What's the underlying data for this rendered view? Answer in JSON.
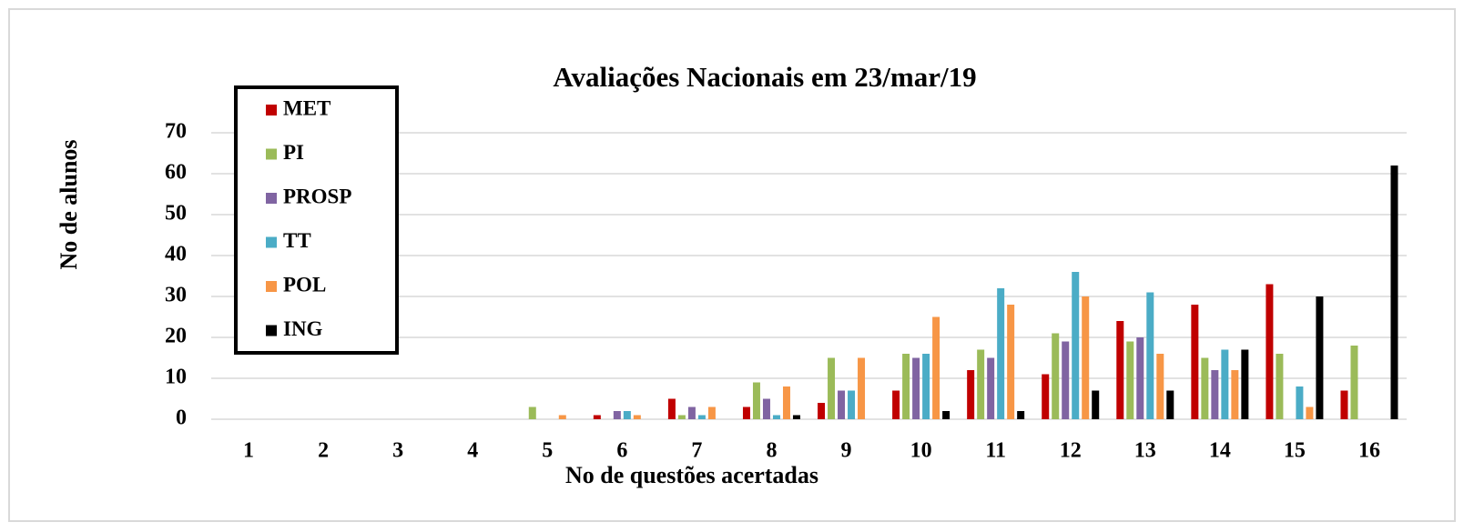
{
  "chart_data": {
    "type": "bar",
    "title": "Avaliações Nacionais em 23/mar/19",
    "x_label": "No de questões acertadas",
    "y_label": "No de alunos",
    "categories": [
      "1",
      "2",
      "3",
      "4",
      "5",
      "6",
      "7",
      "8",
      "9",
      "10",
      "11",
      "12",
      "13",
      "14",
      "15",
      "16"
    ],
    "series": [
      {
        "name": "MET",
        "color": "#c00000",
        "values": [
          0,
          0,
          0,
          0,
          0,
          1,
          5,
          3,
          4,
          7,
          12,
          11,
          24,
          28,
          33,
          7
        ]
      },
      {
        "name": "PI",
        "color": "#9bbb59",
        "values": [
          0,
          0,
          0,
          0,
          3,
          0,
          1,
          9,
          15,
          16,
          17,
          21,
          19,
          15,
          16,
          18
        ]
      },
      {
        "name": "PROSP",
        "color": "#8064a2",
        "values": [
          0,
          0,
          0,
          0,
          0,
          2,
          3,
          5,
          7,
          15,
          15,
          19,
          20,
          12,
          0,
          0
        ]
      },
      {
        "name": "TT",
        "color": "#4bacc6",
        "values": [
          0,
          0,
          0,
          0,
          0,
          2,
          1,
          1,
          7,
          16,
          32,
          36,
          31,
          17,
          8,
          0
        ]
      },
      {
        "name": "POL",
        "color": "#f79646",
        "values": [
          0,
          0,
          0,
          0,
          1,
          1,
          3,
          8,
          15,
          25,
          28,
          30,
          16,
          12,
          3,
          0
        ]
      },
      {
        "name": "ING",
        "color": "#000000",
        "values": [
          0,
          0,
          0,
          0,
          0,
          0,
          0,
          1,
          0,
          2,
          2,
          7,
          7,
          17,
          30,
          62
        ]
      }
    ],
    "ylim": [
      0,
      70
    ],
    "yticks": [
      0,
      10,
      20,
      30,
      40,
      50,
      60,
      70
    ],
    "grid": true,
    "legend": "upper left"
  }
}
